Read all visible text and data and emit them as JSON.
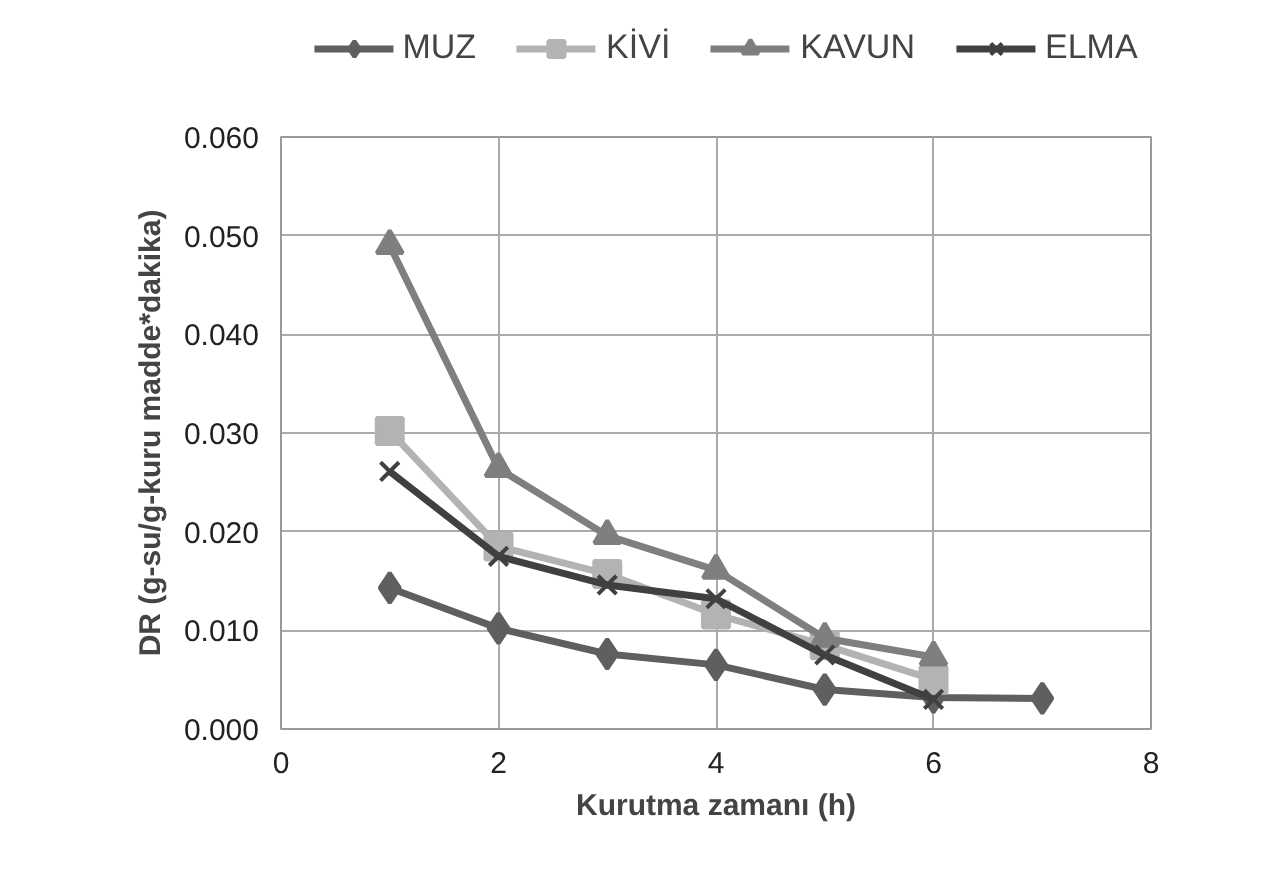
{
  "chart_data": {
    "type": "line",
    "xlabel": "Kurutma zamanı (h)",
    "ylabel": "DR (g-su/g-kuru madde*dakika)",
    "x": [
      1,
      2,
      3,
      4,
      5,
      6,
      7
    ],
    "series": [
      {
        "name": "MUZ",
        "color": "#5f5f5f",
        "marker": "diamond",
        "values": [
          0.0143,
          0.0102,
          0.0076,
          0.0065,
          0.004,
          0.0032,
          0.0031
        ]
      },
      {
        "name": "KİVİ",
        "color": "#b3b3b3",
        "marker": "square",
        "values": [
          0.0302,
          0.0185,
          0.0157,
          0.0116,
          0.0085,
          0.005,
          null
        ]
      },
      {
        "name": "KAVUN",
        "color": "#7f7f7f",
        "marker": "triangle",
        "values": [
          0.049,
          0.0264,
          0.0196,
          0.0161,
          0.0092,
          0.0073,
          null
        ]
      },
      {
        "name": "ELMA",
        "color": "#404040",
        "marker": "cross",
        "values": [
          0.0261,
          0.0175,
          0.0146,
          0.0132,
          0.0075,
          0.003,
          null
        ]
      }
    ],
    "xlim": [
      0,
      8
    ],
    "xticks": [
      0,
      2,
      4,
      6,
      8
    ],
    "ylim": [
      0,
      0.06
    ],
    "yticks": [
      {
        "value": 0,
        "label": "0.000"
      },
      {
        "value": 0.01,
        "label": "0.010"
      },
      {
        "value": 0.02,
        "label": "0.020"
      },
      {
        "value": 0.03,
        "label": "0.030"
      },
      {
        "value": 0.04,
        "label": "0.040"
      },
      {
        "value": 0.05,
        "label": "0.050"
      },
      {
        "value": 0.06,
        "label": "0.060"
      }
    ],
    "grid": true,
    "legend": "top",
    "line_style": "solid"
  }
}
